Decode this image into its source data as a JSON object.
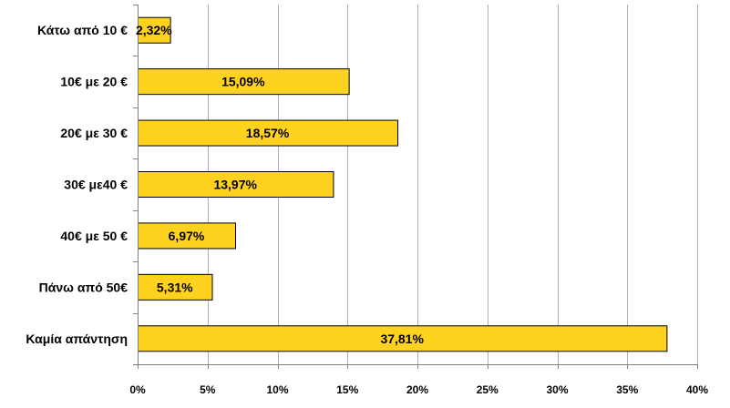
{
  "chart_data": {
    "type": "bar",
    "orientation": "horizontal",
    "categories": [
      "Κάτω από 10 €",
      "10€ με 20 €",
      "20€ με 30 €",
      "30€ με40 €",
      "40€ με 50 €",
      "Πάνω από 50€",
      "Καμία απάντηση"
    ],
    "values": [
      2.32,
      15.09,
      18.57,
      13.97,
      6.97,
      5.31,
      37.81
    ],
    "data_labels": [
      "2,32%",
      "15,09%",
      "18,57%",
      "13,97%",
      "6,97%",
      "5,31%",
      "37,81%"
    ],
    "xlim": [
      0,
      40
    ],
    "x_ticks": [
      0,
      5,
      10,
      15,
      20,
      25,
      30,
      35,
      40
    ],
    "x_tick_labels": [
      "0%",
      "5%",
      "10%",
      "15%",
      "20%",
      "25%",
      "30%",
      "35%",
      "40%"
    ],
    "title": "",
    "xlabel": "",
    "ylabel": "",
    "grid": "vertical",
    "legend": "none",
    "colors": {
      "bar": "#FFD21F",
      "bar_border": "#000000",
      "grid": "#B0B0B0",
      "axis": "#808080"
    }
  }
}
